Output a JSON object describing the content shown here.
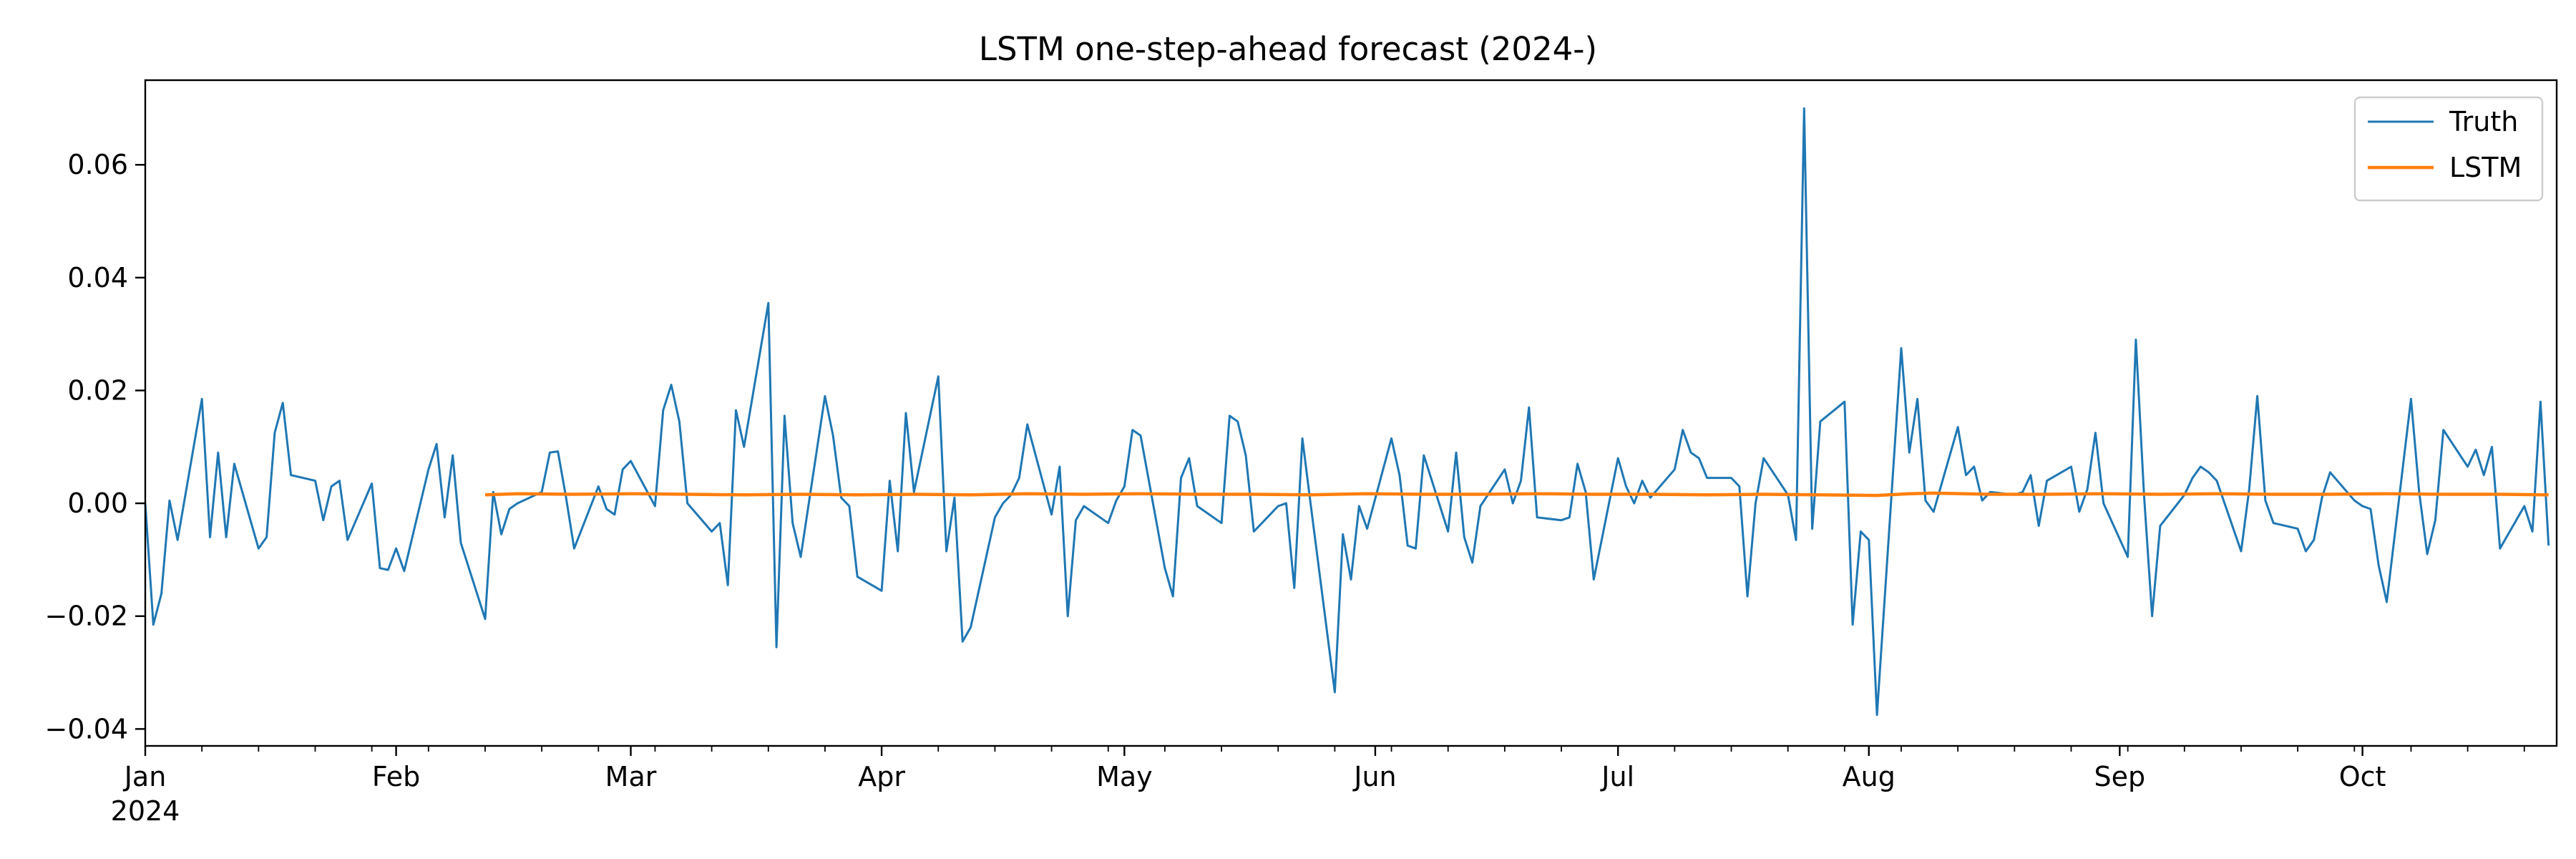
{
  "chart_data": {
    "type": "line",
    "title": "LSTM one-step-ahead forecast (2024-)",
    "xlabel": "",
    "ylabel": "",
    "x_axis": {
      "type": "date",
      "start": "2024-01-01",
      "end": "2024-10-25",
      "month_ticks": [
        {
          "date": "2024-01-01",
          "label": "Jan",
          "sublabel": "2024"
        },
        {
          "date": "2024-02-01",
          "label": "Feb"
        },
        {
          "date": "2024-03-01",
          "label": "Mar"
        },
        {
          "date": "2024-04-01",
          "label": "Apr"
        },
        {
          "date": "2024-05-01",
          "label": "May"
        },
        {
          "date": "2024-06-01",
          "label": "Jun"
        },
        {
          "date": "2024-07-01",
          "label": "Jul"
        },
        {
          "date": "2024-08-01",
          "label": "Aug"
        },
        {
          "date": "2024-09-01",
          "label": "Sep"
        },
        {
          "date": "2024-10-01",
          "label": "Oct"
        }
      ],
      "minor_ticks": "weekly (Mondays)"
    },
    "y_axis": {
      "range": [
        -0.043,
        0.075
      ],
      "ticks": [
        -0.04,
        -0.02,
        0.0,
        0.02,
        0.04,
        0.06
      ],
      "tick_labels": [
        "−0.04",
        "−0.02",
        "0.00",
        "0.02",
        "0.04",
        "0.06"
      ]
    },
    "grid": false,
    "legend": {
      "position": "top-right",
      "entries": [
        "Truth",
        "LSTM"
      ]
    },
    "series": [
      {
        "name": "Truth",
        "color": "#1f77b4",
        "points": [
          [
            "2024-01-01",
            0.0
          ],
          [
            "2024-01-02",
            -0.0215
          ],
          [
            "2024-01-03",
            -0.016
          ],
          [
            "2024-01-04",
            0.0005
          ],
          [
            "2024-01-05",
            -0.0065
          ],
          [
            "2024-01-08",
            0.0185
          ],
          [
            "2024-01-09",
            -0.006
          ],
          [
            "2024-01-10",
            0.009
          ],
          [
            "2024-01-11",
            -0.006
          ],
          [
            "2024-01-12",
            0.007
          ],
          [
            "2024-01-15",
            -0.008
          ],
          [
            "2024-01-16",
            -0.006
          ],
          [
            "2024-01-17",
            0.0125
          ],
          [
            "2024-01-18",
            0.0178
          ],
          [
            "2024-01-19",
            0.005
          ],
          [
            "2024-01-22",
            0.004
          ],
          [
            "2024-01-23",
            -0.003
          ],
          [
            "2024-01-24",
            0.003
          ],
          [
            "2024-01-25",
            0.004
          ],
          [
            "2024-01-26",
            -0.0065
          ],
          [
            "2024-01-29",
            0.0035
          ],
          [
            "2024-01-30",
            -0.0115
          ],
          [
            "2024-01-31",
            -0.0118
          ],
          [
            "2024-02-01",
            -0.008
          ],
          [
            "2024-02-02",
            -0.012
          ],
          [
            "2024-02-05",
            0.006
          ],
          [
            "2024-02-06",
            0.0105
          ],
          [
            "2024-02-07",
            -0.0025
          ],
          [
            "2024-02-08",
            0.0085
          ],
          [
            "2024-02-09",
            -0.007
          ],
          [
            "2024-02-12",
            -0.0205
          ],
          [
            "2024-02-13",
            0.002
          ],
          [
            "2024-02-14",
            -0.0055
          ],
          [
            "2024-02-15",
            -0.001
          ],
          [
            "2024-02-16",
            0.0
          ],
          [
            "2024-02-19",
            0.002
          ],
          [
            "2024-02-20",
            0.009
          ],
          [
            "2024-02-21",
            0.0092
          ],
          [
            "2024-02-22",
            0.001
          ],
          [
            "2024-02-23",
            -0.008
          ],
          [
            "2024-02-26",
            0.003
          ],
          [
            "2024-02-27",
            -0.001
          ],
          [
            "2024-02-28",
            -0.002
          ],
          [
            "2024-02-29",
            0.006
          ],
          [
            "2024-03-01",
            0.0075
          ],
          [
            "2024-03-04",
            -0.0005
          ],
          [
            "2024-03-05",
            0.0165
          ],
          [
            "2024-03-06",
            0.021
          ],
          [
            "2024-03-07",
            0.0145
          ],
          [
            "2024-03-08",
            0.0
          ],
          [
            "2024-03-11",
            -0.005
          ],
          [
            "2024-03-12",
            -0.0035
          ],
          [
            "2024-03-13",
            -0.0145
          ],
          [
            "2024-03-14",
            0.0165
          ],
          [
            "2024-03-15",
            0.01
          ],
          [
            "2024-03-18",
            0.0355
          ],
          [
            "2024-03-19",
            -0.0255
          ],
          [
            "2024-03-20",
            0.0155
          ],
          [
            "2024-03-21",
            -0.0035
          ],
          [
            "2024-03-22",
            -0.0095
          ],
          [
            "2024-03-25",
            0.019
          ],
          [
            "2024-03-26",
            0.012
          ],
          [
            "2024-03-27",
            0.001
          ],
          [
            "2024-03-28",
            -0.0005
          ],
          [
            "2024-03-29",
            -0.013
          ],
          [
            "2024-04-01",
            -0.0155
          ],
          [
            "2024-04-02",
            0.004
          ],
          [
            "2024-04-03",
            -0.0085
          ],
          [
            "2024-04-04",
            0.016
          ],
          [
            "2024-04-05",
            0.002
          ],
          [
            "2024-04-08",
            0.0225
          ],
          [
            "2024-04-09",
            -0.0085
          ],
          [
            "2024-04-10",
            0.001
          ],
          [
            "2024-04-11",
            -0.0245
          ],
          [
            "2024-04-12",
            -0.022
          ],
          [
            "2024-04-15",
            -0.0025
          ],
          [
            "2024-04-16",
            0.0
          ],
          [
            "2024-04-17",
            0.0015
          ],
          [
            "2024-04-18",
            0.0045
          ],
          [
            "2024-04-19",
            0.014
          ],
          [
            "2024-04-22",
            -0.002
          ],
          [
            "2024-04-23",
            0.0065
          ],
          [
            "2024-04-24",
            -0.02
          ],
          [
            "2024-04-25",
            -0.003
          ],
          [
            "2024-04-26",
            -0.0005
          ],
          [
            "2024-04-29",
            -0.0035
          ],
          [
            "2024-04-30",
            0.0005
          ],
          [
            "2024-05-01",
            0.003
          ],
          [
            "2024-05-02",
            0.013
          ],
          [
            "2024-05-03",
            0.012
          ],
          [
            "2024-05-06",
            -0.0115
          ],
          [
            "2024-05-07",
            -0.0165
          ],
          [
            "2024-05-08",
            0.0045
          ],
          [
            "2024-05-09",
            0.008
          ],
          [
            "2024-05-10",
            -0.0005
          ],
          [
            "2024-05-13",
            -0.0035
          ],
          [
            "2024-05-14",
            0.0155
          ],
          [
            "2024-05-15",
            0.0145
          ],
          [
            "2024-05-16",
            0.0085
          ],
          [
            "2024-05-17",
            -0.005
          ],
          [
            "2024-05-20",
            -0.0005
          ],
          [
            "2024-05-21",
            0.0
          ],
          [
            "2024-05-22",
            -0.015
          ],
          [
            "2024-05-23",
            0.0115
          ],
          [
            "2024-05-24",
            0.0
          ],
          [
            "2024-05-27",
            -0.0335
          ],
          [
            "2024-05-28",
            -0.0055
          ],
          [
            "2024-05-29",
            -0.0135
          ],
          [
            "2024-05-30",
            -0.0005
          ],
          [
            "2024-05-31",
            -0.0045
          ],
          [
            "2024-06-03",
            0.0115
          ],
          [
            "2024-06-04",
            0.005
          ],
          [
            "2024-06-05",
            -0.0075
          ],
          [
            "2024-06-06",
            -0.008
          ],
          [
            "2024-06-07",
            0.0085
          ],
          [
            "2024-06-10",
            -0.005
          ],
          [
            "2024-06-11",
            0.009
          ],
          [
            "2024-06-12",
            -0.006
          ],
          [
            "2024-06-13",
            -0.0105
          ],
          [
            "2024-06-14",
            -0.0005
          ],
          [
            "2024-06-17",
            0.006
          ],
          [
            "2024-06-18",
            0.0
          ],
          [
            "2024-06-19",
            0.004
          ],
          [
            "2024-06-20",
            0.017
          ],
          [
            "2024-06-21",
            -0.0025
          ],
          [
            "2024-06-24",
            -0.003
          ],
          [
            "2024-06-25",
            -0.0025
          ],
          [
            "2024-06-26",
            0.007
          ],
          [
            "2024-06-27",
            0.002
          ],
          [
            "2024-06-28",
            -0.0135
          ],
          [
            "2024-07-01",
            0.008
          ],
          [
            "2024-07-02",
            0.003
          ],
          [
            "2024-07-03",
            0.0
          ],
          [
            "2024-07-04",
            0.004
          ],
          [
            "2024-07-05",
            0.001
          ],
          [
            "2024-07-08",
            0.006
          ],
          [
            "2024-07-09",
            0.013
          ],
          [
            "2024-07-10",
            0.009
          ],
          [
            "2024-07-11",
            0.008
          ],
          [
            "2024-07-12",
            0.0045
          ],
          [
            "2024-07-15",
            0.0045
          ],
          [
            "2024-07-16",
            0.003
          ],
          [
            "2024-07-17",
            -0.0165
          ],
          [
            "2024-07-18",
            0.0
          ],
          [
            "2024-07-19",
            0.008
          ],
          [
            "2024-07-22",
            0.0015
          ],
          [
            "2024-07-23",
            -0.0065
          ],
          [
            "2024-07-24",
            0.07
          ],
          [
            "2024-07-25",
            -0.0045
          ],
          [
            "2024-07-26",
            0.0145
          ],
          [
            "2024-07-29",
            0.018
          ],
          [
            "2024-07-30",
            -0.0215
          ],
          [
            "2024-07-31",
            -0.005
          ],
          [
            "2024-08-01",
            -0.0065
          ],
          [
            "2024-08-02",
            -0.0375
          ],
          [
            "2024-08-05",
            0.0275
          ],
          [
            "2024-08-06",
            0.009
          ],
          [
            "2024-08-07",
            0.0185
          ],
          [
            "2024-08-08",
            0.0005
          ],
          [
            "2024-08-09",
            -0.0015
          ],
          [
            "2024-08-12",
            0.0135
          ],
          [
            "2024-08-13",
            0.005
          ],
          [
            "2024-08-14",
            0.0065
          ],
          [
            "2024-08-15",
            0.0005
          ],
          [
            "2024-08-16",
            0.002
          ],
          [
            "2024-08-19",
            0.0015
          ],
          [
            "2024-08-20",
            0.002
          ],
          [
            "2024-08-21",
            0.005
          ],
          [
            "2024-08-22",
            -0.004
          ],
          [
            "2024-08-23",
            0.004
          ],
          [
            "2024-08-26",
            0.0065
          ],
          [
            "2024-08-27",
            -0.0015
          ],
          [
            "2024-08-28",
            0.0025
          ],
          [
            "2024-08-29",
            0.0125
          ],
          [
            "2024-08-30",
            0.0
          ],
          [
            "2024-09-02",
            -0.0095
          ],
          [
            "2024-09-03",
            0.029
          ],
          [
            "2024-09-04",
            0.0015
          ],
          [
            "2024-09-05",
            -0.02
          ],
          [
            "2024-09-06",
            -0.004
          ],
          [
            "2024-09-09",
            0.0015
          ],
          [
            "2024-09-10",
            0.0045
          ],
          [
            "2024-09-11",
            0.0065
          ],
          [
            "2024-09-12",
            0.0055
          ],
          [
            "2024-09-13",
            0.004
          ],
          [
            "2024-09-16",
            -0.0085
          ],
          [
            "2024-09-17",
            0.0025
          ],
          [
            "2024-09-18",
            0.019
          ],
          [
            "2024-09-19",
            0.0005
          ],
          [
            "2024-09-20",
            -0.0035
          ],
          [
            "2024-09-23",
            -0.0045
          ],
          [
            "2024-09-24",
            -0.0085
          ],
          [
            "2024-09-25",
            -0.0065
          ],
          [
            "2024-09-26",
            0.001
          ],
          [
            "2024-09-27",
            0.0055
          ],
          [
            "2024-09-30",
            0.0005
          ],
          [
            "2024-10-01",
            -0.0005
          ],
          [
            "2024-10-02",
            -0.001
          ],
          [
            "2024-10-03",
            -0.011
          ],
          [
            "2024-10-04",
            -0.0175
          ],
          [
            "2024-10-07",
            0.0185
          ],
          [
            "2024-10-08",
            0.002
          ],
          [
            "2024-10-09",
            -0.009
          ],
          [
            "2024-10-10",
            -0.003
          ],
          [
            "2024-10-11",
            0.013
          ],
          [
            "2024-10-14",
            0.0065
          ],
          [
            "2024-10-15",
            0.0095
          ],
          [
            "2024-10-16",
            0.005
          ],
          [
            "2024-10-17",
            0.01
          ],
          [
            "2024-10-18",
            -0.008
          ],
          [
            "2024-10-21",
            -0.0005
          ],
          [
            "2024-10-22",
            -0.005
          ],
          [
            "2024-10-23",
            0.018
          ],
          [
            "2024-10-24",
            -0.0075
          ]
        ]
      },
      {
        "name": "LSTM",
        "color": "#ff7f0e",
        "points": [
          [
            "2024-02-12",
            0.0015
          ],
          [
            "2024-02-16",
            0.0017
          ],
          [
            "2024-02-23",
            0.0016
          ],
          [
            "2024-03-01",
            0.0017
          ],
          [
            "2024-03-08",
            0.0016
          ],
          [
            "2024-03-15",
            0.0015
          ],
          [
            "2024-03-22",
            0.0016
          ],
          [
            "2024-03-29",
            0.0015
          ],
          [
            "2024-04-05",
            0.0016
          ],
          [
            "2024-04-12",
            0.0015
          ],
          [
            "2024-04-19",
            0.0017
          ],
          [
            "2024-04-26",
            0.0016
          ],
          [
            "2024-05-03",
            0.0017
          ],
          [
            "2024-05-10",
            0.0016
          ],
          [
            "2024-05-17",
            0.0016
          ],
          [
            "2024-05-24",
            0.0015
          ],
          [
            "2024-05-31",
            0.0017
          ],
          [
            "2024-06-07",
            0.0016
          ],
          [
            "2024-06-14",
            0.0016
          ],
          [
            "2024-06-21",
            0.0017
          ],
          [
            "2024-06-28",
            0.0016
          ],
          [
            "2024-07-05",
            0.0016
          ],
          [
            "2024-07-12",
            0.0015
          ],
          [
            "2024-07-19",
            0.0016
          ],
          [
            "2024-07-26",
            0.0015
          ],
          [
            "2024-08-02",
            0.0014
          ],
          [
            "2024-08-06",
            0.0017
          ],
          [
            "2024-08-09",
            0.0018
          ],
          [
            "2024-08-16",
            0.0016
          ],
          [
            "2024-08-23",
            0.0016
          ],
          [
            "2024-08-30",
            0.0017
          ],
          [
            "2024-09-06",
            0.0016
          ],
          [
            "2024-09-13",
            0.0017
          ],
          [
            "2024-09-20",
            0.0016
          ],
          [
            "2024-09-27",
            0.0016
          ],
          [
            "2024-10-04",
            0.0017
          ],
          [
            "2024-10-11",
            0.0016
          ],
          [
            "2024-10-18",
            0.0016
          ],
          [
            "2024-10-24",
            0.0015
          ]
        ]
      }
    ]
  }
}
